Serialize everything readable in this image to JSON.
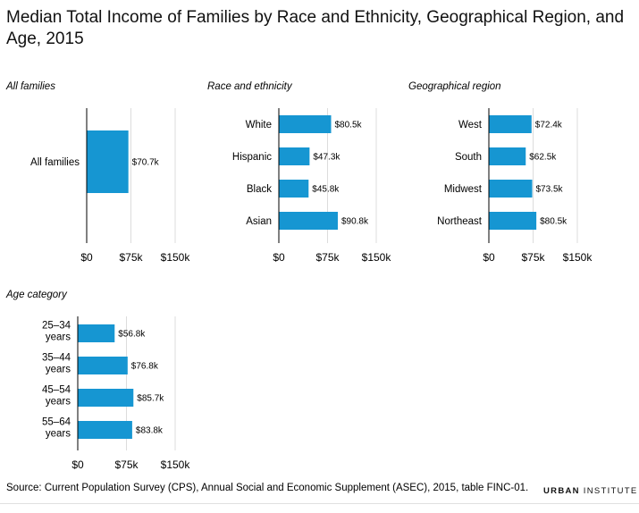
{
  "title": "Median Total Income of Families by Race and Ethnicity, Geographical Region, and Age, 2015",
  "source": "Source: Current Population Survey (CPS), Annual Social and Economic Supplement (ASEC), 2015, table FINC-01.",
  "brand": {
    "bold": "URBAN",
    "rest": " INSTITUTE"
  },
  "colors": {
    "bar": "#1696d2",
    "grid": "#dcdcdc",
    "axis": "#000000"
  },
  "chart_data": [
    {
      "type": "bar",
      "orientation": "horizontal",
      "panel_title": "All families",
      "categories": [
        "All families"
      ],
      "values": [
        70.7
      ],
      "value_labels": [
        "$70.7k"
      ],
      "xlim": [
        0,
        150
      ],
      "x_ticks": [
        0,
        75,
        150
      ],
      "x_tick_labels": [
        "$0",
        "$75k",
        "$150k"
      ],
      "grid": true
    },
    {
      "type": "bar",
      "orientation": "horizontal",
      "panel_title": "Race and ethnicity",
      "categories": [
        "White",
        "Hispanic",
        "Black",
        "Asian"
      ],
      "values": [
        80.5,
        47.3,
        45.8,
        90.8
      ],
      "value_labels": [
        "$80.5k",
        "$47.3k",
        "$45.8k",
        "$90.8k"
      ],
      "xlim": [
        0,
        150
      ],
      "x_ticks": [
        0,
        75,
        150
      ],
      "x_tick_labels": [
        "$0",
        "$75k",
        "$150k"
      ],
      "grid": true
    },
    {
      "type": "bar",
      "orientation": "horizontal",
      "panel_title": "Geographical region",
      "categories": [
        "West",
        "South",
        "Midwest",
        "Northeast"
      ],
      "values": [
        72.4,
        62.5,
        73.5,
        80.5
      ],
      "value_labels": [
        "$72.4k",
        "$62.5k",
        "$73.5k",
        "$80.5k"
      ],
      "xlim": [
        0,
        150
      ],
      "x_ticks": [
        0,
        75,
        150
      ],
      "x_tick_labels": [
        "$0",
        "$75k",
        "$150k"
      ],
      "grid": true
    },
    {
      "type": "bar",
      "orientation": "horizontal",
      "panel_title": "Age category",
      "categories": [
        "25–34 years",
        "35–44 years",
        "45–54 years",
        "55–64 years"
      ],
      "category_lines": [
        [
          "25–34",
          "years"
        ],
        [
          "35–44",
          "years"
        ],
        [
          "45–54",
          "years"
        ],
        [
          "55–64",
          "years"
        ]
      ],
      "values": [
        56.8,
        76.8,
        85.7,
        83.8
      ],
      "value_labels": [
        "$56.8k",
        "$76.8k",
        "$85.7k",
        "$83.8k"
      ],
      "xlim": [
        0,
        150
      ],
      "x_ticks": [
        0,
        75,
        150
      ],
      "x_tick_labels": [
        "$0",
        "$75k",
        "$150k"
      ],
      "grid": true
    }
  ]
}
